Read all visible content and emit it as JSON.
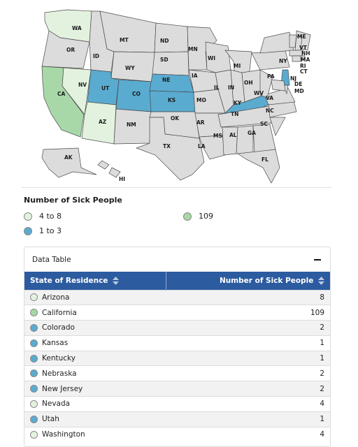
{
  "map": {
    "state_labels": [
      "WA",
      "OR",
      "CA",
      "NV",
      "ID",
      "MT",
      "WY",
      "UT",
      "AZ",
      "CO",
      "NM",
      "ND",
      "SD",
      "NE",
      "KS",
      "OK",
      "TX",
      "MN",
      "IA",
      "MO",
      "AR",
      "LA",
      "WI",
      "IL",
      "MI",
      "IN",
      "OH",
      "KY",
      "TN",
      "MS",
      "AL",
      "GA",
      "FL",
      "SC",
      "NC",
      "VA",
      "WV",
      "PA",
      "NY",
      "ME",
      "VT",
      "NH",
      "MA",
      "RI",
      "CT",
      "NJ",
      "DE",
      "MD",
      "AK",
      "HI"
    ],
    "fill_by_state": {
      "WA": "#e3f2df",
      "NV": "#e3f2df",
      "AZ": "#e3f2df",
      "CA": "#a8d8a8",
      "UT": "#5aabd0",
      "CO": "#5aabd0",
      "NE": "#5aabd0",
      "KS": "#5aabd0",
      "KY": "#5aabd0",
      "NJ": "#5aabd0"
    },
    "default_fill": "#dcdcdc"
  },
  "legend": {
    "title": "Number of Sick People",
    "items": [
      {
        "label": "4 to 8",
        "color": "#e3f2df"
      },
      {
        "label": "1 to 3",
        "color": "#5aabd0"
      },
      {
        "label": "109",
        "color": "#a8d8a8"
      }
    ]
  },
  "data_table": {
    "title": "Data Table",
    "columns": [
      "State of Residence",
      "Number of Sick People"
    ],
    "rows": [
      {
        "state": "Arizona",
        "count": "8",
        "color": "#e3f2df"
      },
      {
        "state": "California",
        "count": "109",
        "color": "#a8d8a8"
      },
      {
        "state": "Colorado",
        "count": "2",
        "color": "#5aabd0"
      },
      {
        "state": "Kansas",
        "count": "1",
        "color": "#5aabd0"
      },
      {
        "state": "Kentucky",
        "count": "1",
        "color": "#5aabd0"
      },
      {
        "state": "Nebraska",
        "count": "2",
        "color": "#5aabd0"
      },
      {
        "state": "New Jersey",
        "count": "2",
        "color": "#5aabd0"
      },
      {
        "state": "Nevada",
        "count": "4",
        "color": "#e3f2df"
      },
      {
        "state": "Utah",
        "count": "1",
        "color": "#5aabd0"
      },
      {
        "state": "Washington",
        "count": "4",
        "color": "#e3f2df"
      }
    ]
  }
}
